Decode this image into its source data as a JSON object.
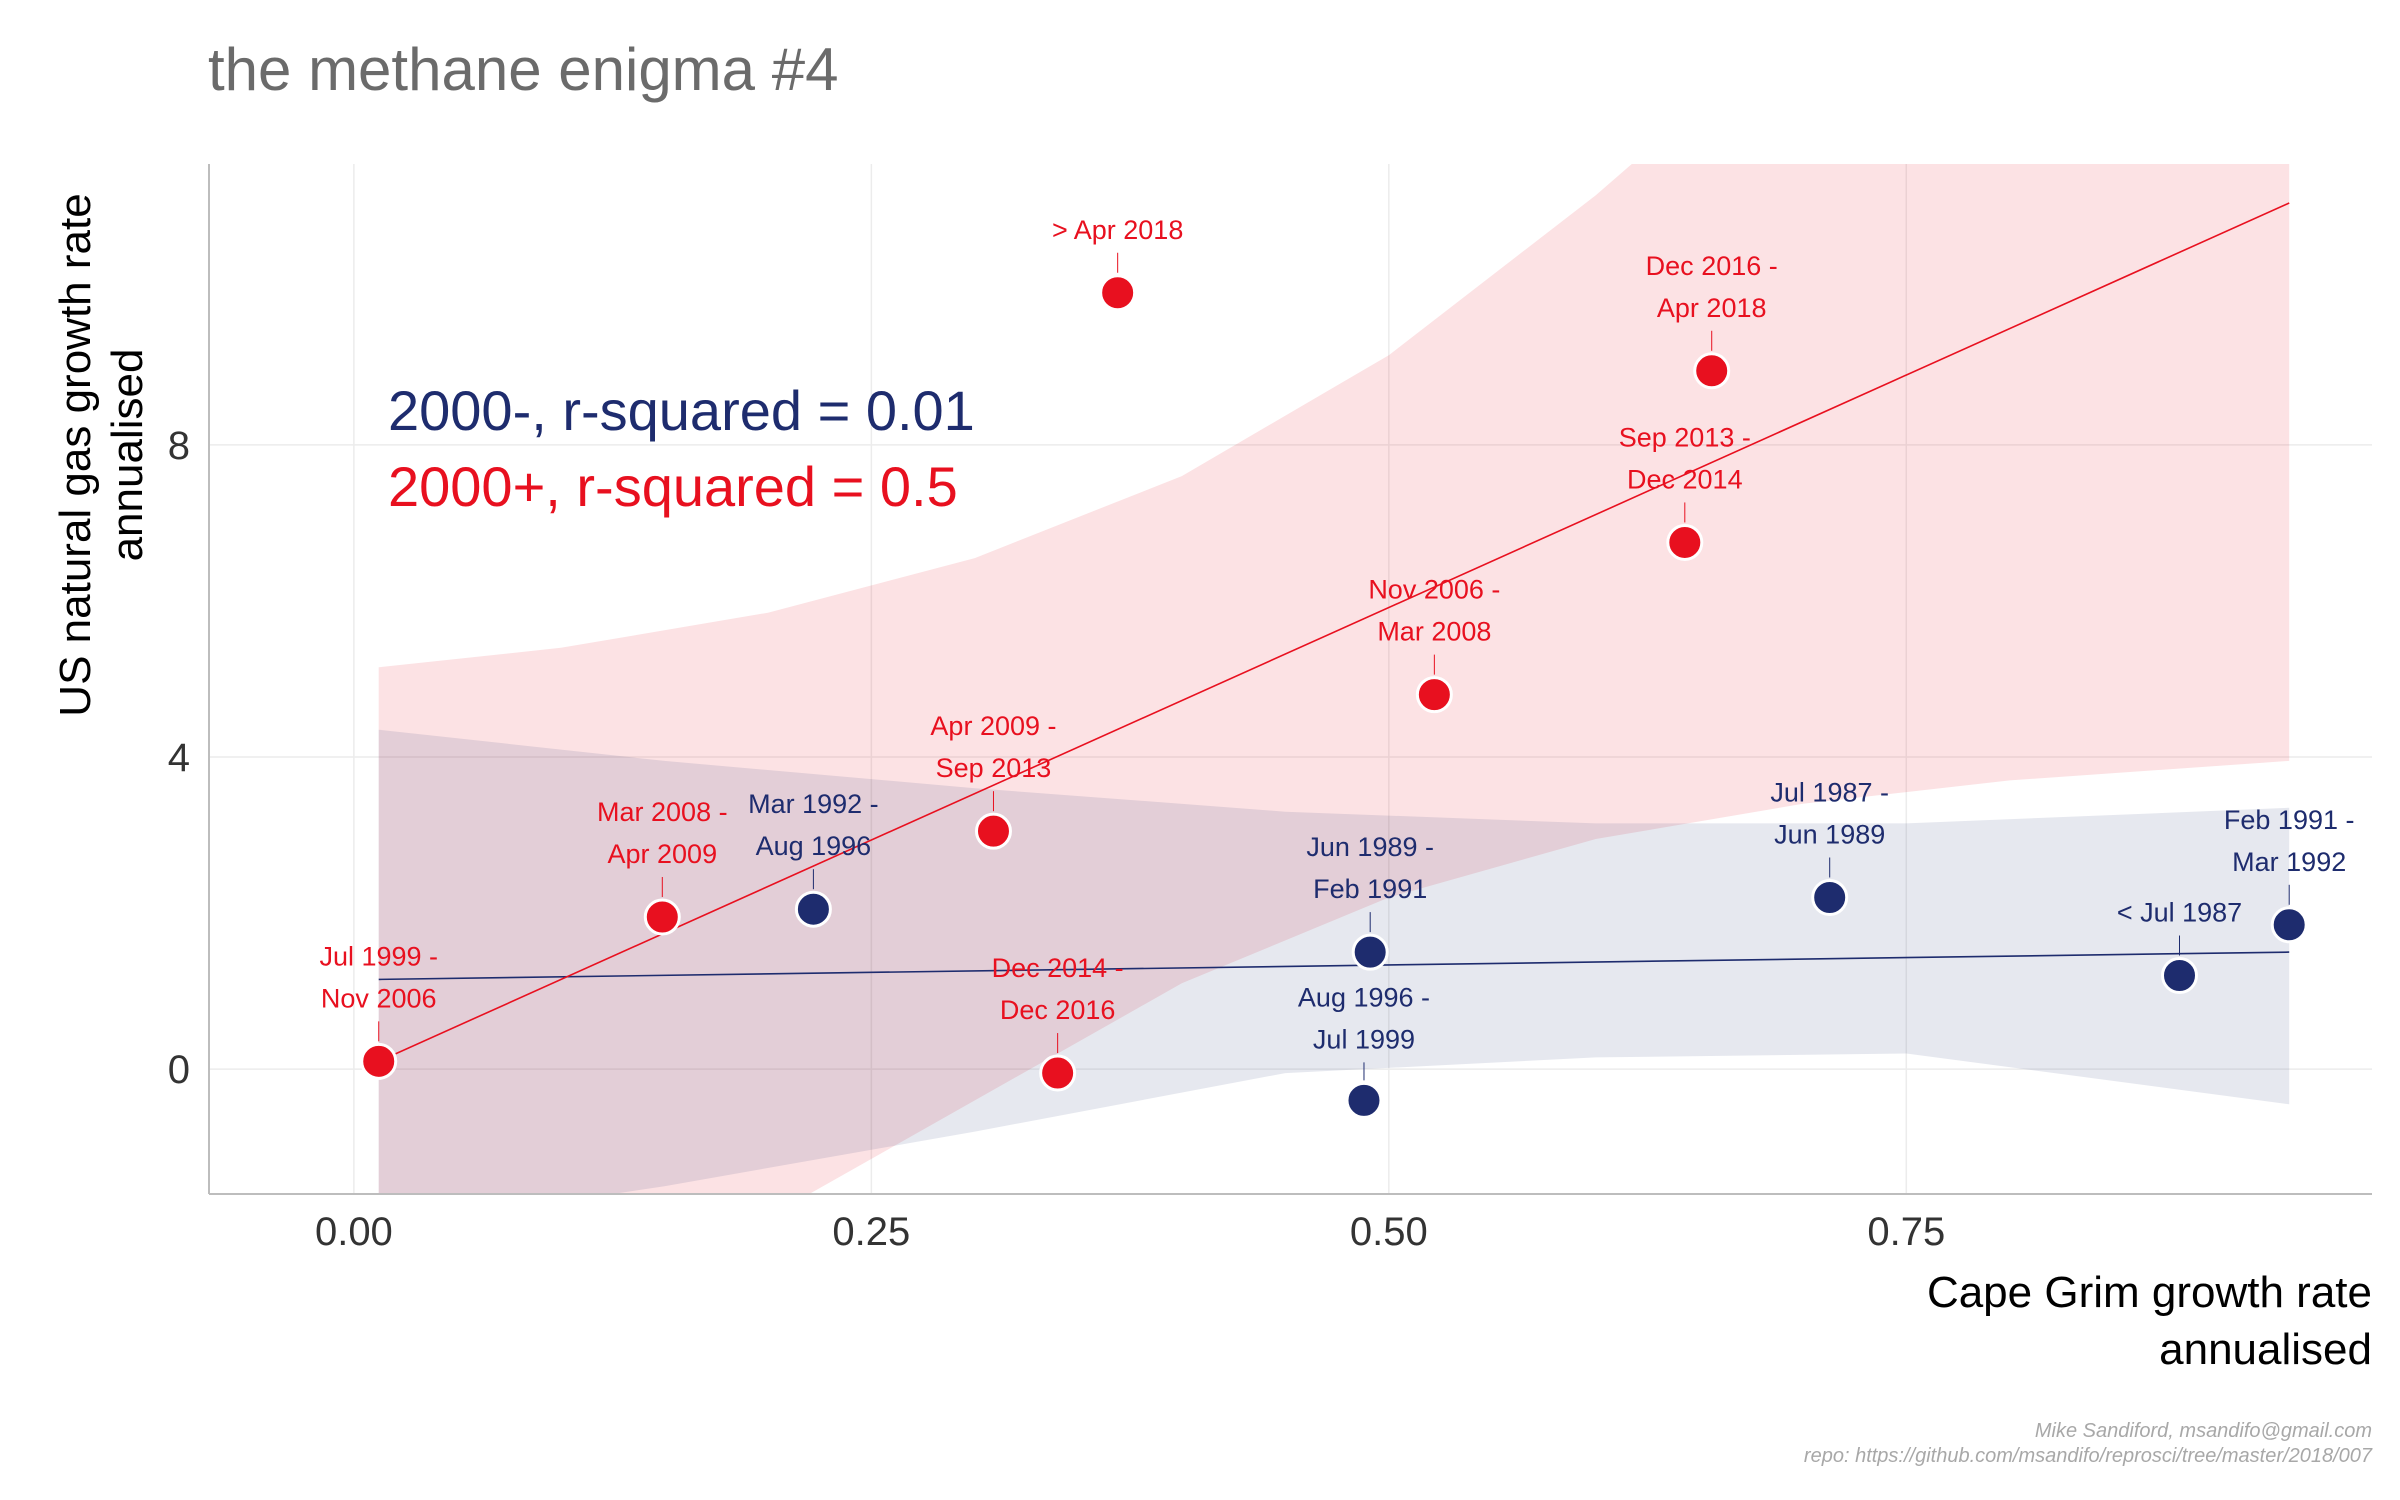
{
  "chart_data": {
    "type": "scatter",
    "title": "the methane enigma #4",
    "xlabel": [
      "Cape Grim growth rate",
      "annualised"
    ],
    "ylabel": [
      "US natural gas growth rate",
      "annualised"
    ],
    "xlim": [
      -0.07,
      0.975
    ],
    "ylim": [
      -1.6,
      11.6
    ],
    "x_ticks": [
      0.0,
      0.25,
      0.5,
      0.75
    ],
    "x_tick_labels": [
      "0.00",
      "0.25",
      "0.50",
      "0.75"
    ],
    "y_ticks": [
      0,
      4,
      8
    ],
    "y_tick_labels": [
      "0",
      "4",
      "8"
    ],
    "grid": true,
    "colors": {
      "pre2000": "#1e2c6e",
      "post2000": "#e8101f",
      "pre2000_band": "#e6e9f2",
      "post2000_band": "#fde4e5",
      "overlap_band": "#e2d0d8"
    },
    "stats": [
      {
        "text": "2000-, r-squared = 0.01",
        "color": "#1e2c6e"
      },
      {
        "text": "2000+, r-squared = 0.5",
        "color": "#e8101f"
      }
    ],
    "series": [
      {
        "group": "pre2000",
        "color": "#1e2c6e",
        "fit": {
          "x": [
            0.012,
            0.935
          ],
          "y": [
            1.15,
            1.5
          ]
        },
        "band": {
          "x": [
            0.012,
            0.15,
            0.3,
            0.45,
            0.6,
            0.75,
            0.935
          ],
          "upper": [
            4.35,
            3.95,
            3.6,
            3.3,
            3.15,
            3.15,
            3.35
          ],
          "lower": [
            -2.05,
            -1.5,
            -0.8,
            -0.05,
            0.15,
            0.2,
            -0.45
          ]
        },
        "points": [
          {
            "x": 0.222,
            "y": 2.05,
            "label": [
              "Mar 1992 -",
              "Aug 1996"
            ]
          },
          {
            "x": 0.491,
            "y": 1.5,
            "label": [
              "Jun 1989 -",
              "Feb 1991"
            ]
          },
          {
            "x": 0.488,
            "y": -0.4,
            "label": [
              "Aug 1996 -",
              "Jul 1999"
            ],
            "below": true
          },
          {
            "x": 0.713,
            "y": 2.2,
            "label": [
              "Jul 1987 -",
              "Jun 1989"
            ]
          },
          {
            "x": 0.882,
            "y": 1.2,
            "label": [
              "< Jul 1987"
            ]
          },
          {
            "x": 0.935,
            "y": 1.85,
            "label": [
              "Feb 1991 -",
              "Mar 1992"
            ]
          }
        ]
      },
      {
        "group": "post2000",
        "color": "#e8101f",
        "fit": {
          "x": [
            0.012,
            0.935
          ],
          "y": [
            0.1,
            11.1
          ]
        },
        "band": {
          "x": [
            0.012,
            0.1,
            0.2,
            0.3,
            0.4,
            0.5,
            0.6,
            0.7,
            0.8,
            0.935
          ],
          "upper": [
            5.15,
            5.4,
            5.85,
            6.55,
            7.6,
            9.15,
            11.2,
            13.5,
            15.8,
            18.5
          ],
          "lower": [
            -4.6,
            -3.3,
            -1.9,
            -0.4,
            1.1,
            2.2,
            2.95,
            3.4,
            3.7,
            3.95
          ]
        },
        "points": [
          {
            "x": 0.012,
            "y": 0.1,
            "label": [
              "Jul 1999 -",
              "Nov 2006"
            ]
          },
          {
            "x": 0.149,
            "y": 1.95,
            "label": [
              "Mar 2008 -",
              "Apr 2009"
            ]
          },
          {
            "x": 0.309,
            "y": 3.05,
            "label": [
              "Apr 2009 -",
              "Sep 2013"
            ]
          },
          {
            "x": 0.34,
            "y": -0.05,
            "label": [
              "Dec 2014 -",
              "Dec 2016"
            ]
          },
          {
            "x": 0.369,
            "y": 9.95,
            "label": [
              "> Apr 2018"
            ]
          },
          {
            "x": 0.522,
            "y": 4.8,
            "label": [
              "Nov 2006 -",
              "Mar 2008"
            ]
          },
          {
            "x": 0.643,
            "y": 6.75,
            "label": [
              "Sep 2013 -",
              "Dec 2014"
            ]
          },
          {
            "x": 0.656,
            "y": 8.95,
            "label": [
              "Dec 2016 -",
              "Apr 2018"
            ]
          }
        ]
      }
    ],
    "credit": [
      "Mike Sandiford, msandifo@gmail.com",
      "repo: https://github.com/msandifo/reprosci/tree/master/2018/007"
    ]
  }
}
